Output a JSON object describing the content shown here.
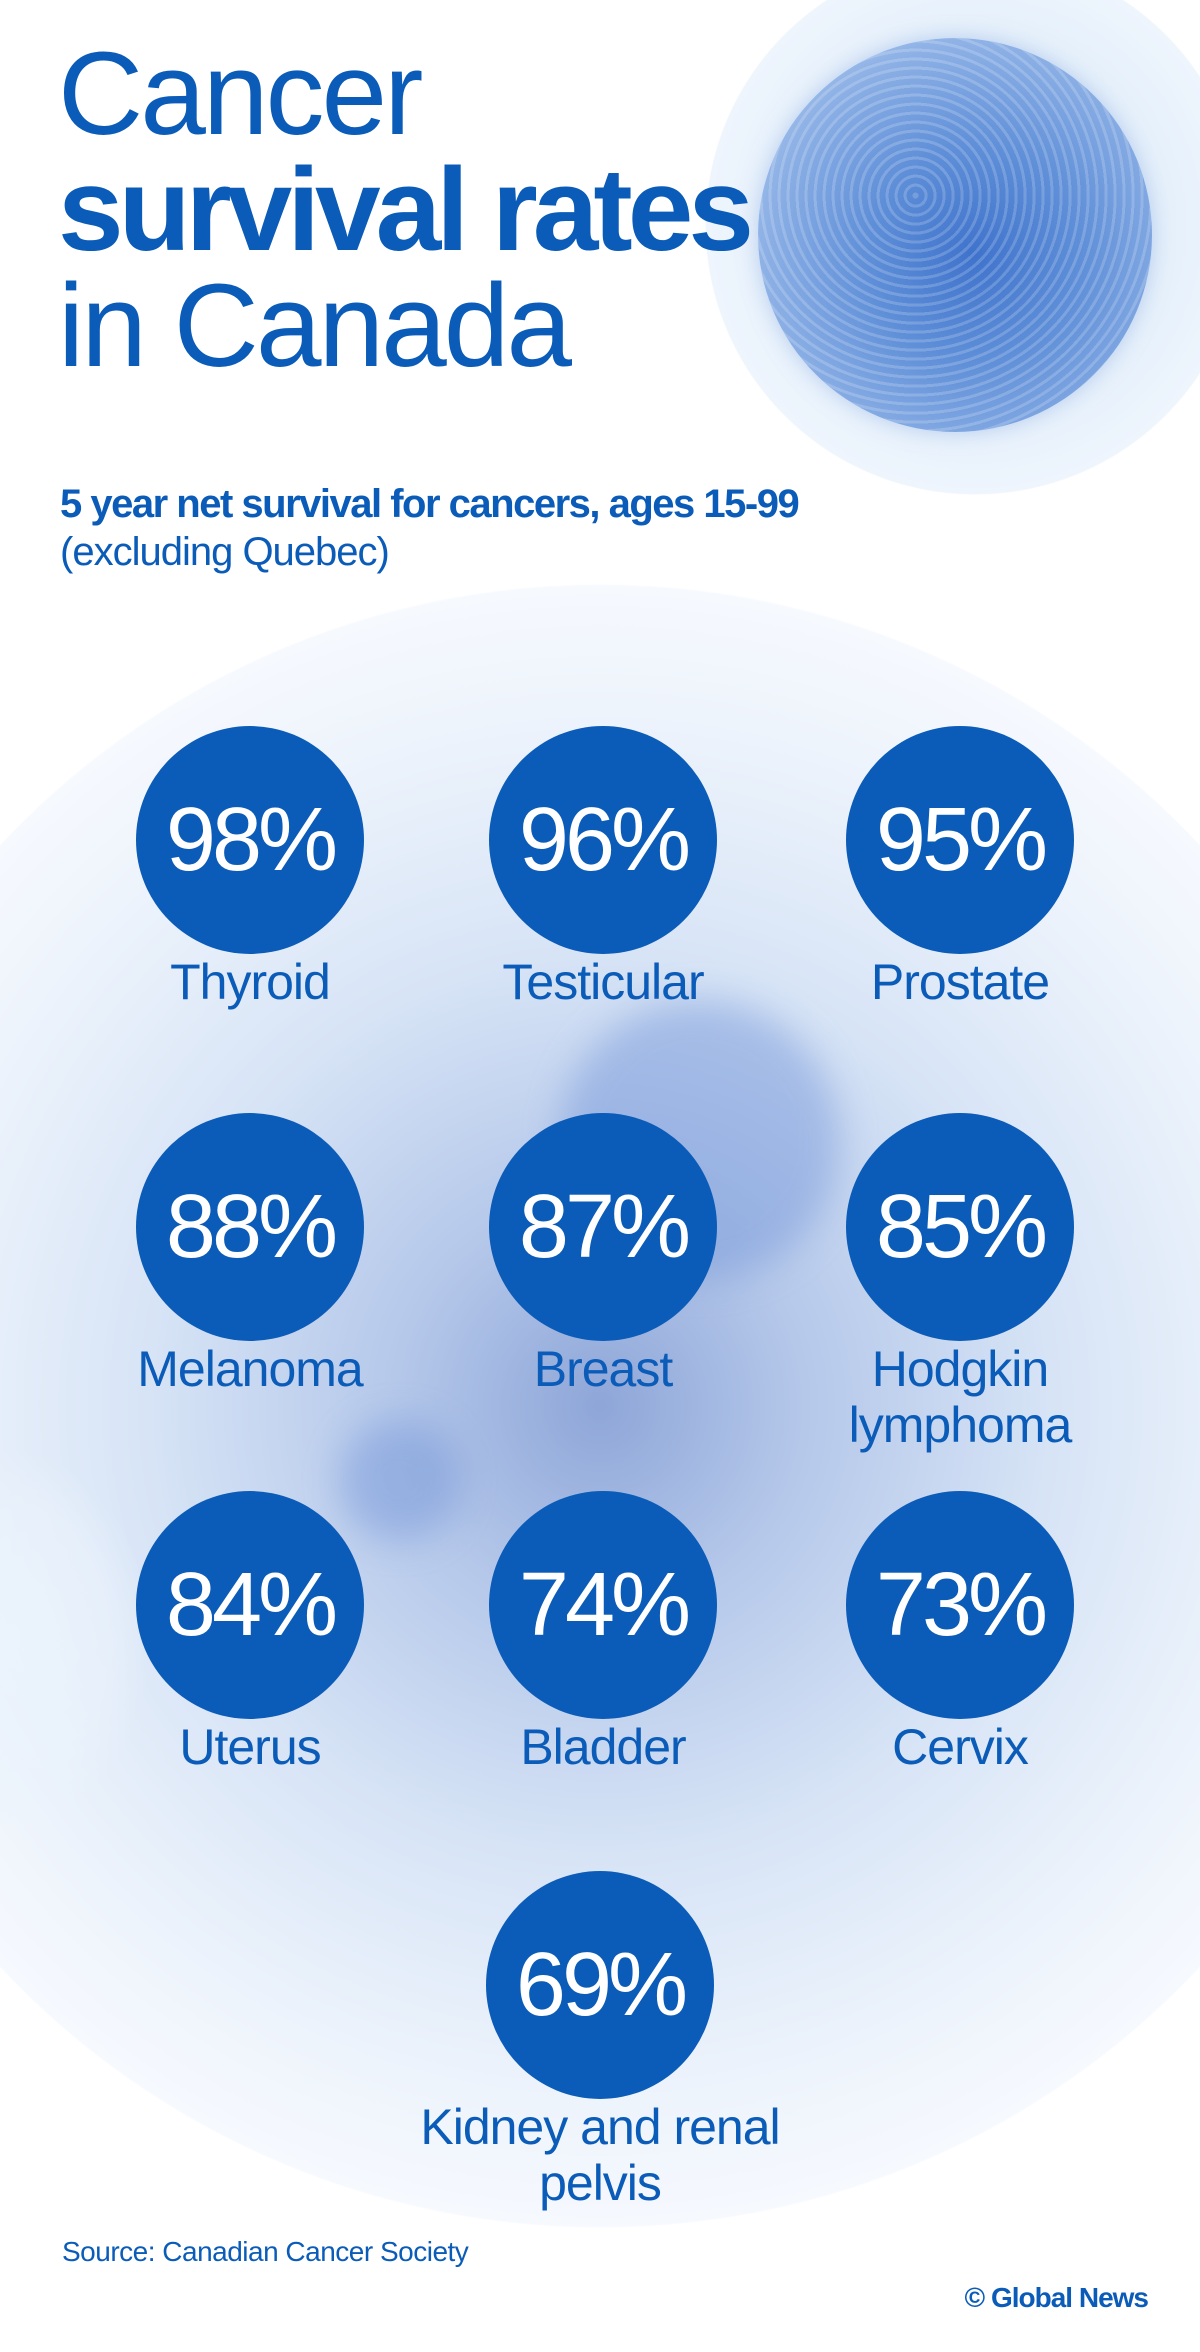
{
  "title": {
    "line1": "Cancer",
    "line2": "survival rates",
    "line3": "in Canada"
  },
  "subtitle": "5 year net survival for cancers, ages 15-99",
  "subnote": "(excluding Quebec)",
  "stats": [
    {
      "value": "98%",
      "label": "Thyroid"
    },
    {
      "value": "96%",
      "label": "Testicular"
    },
    {
      "value": "95%",
      "label": "Prostate"
    },
    {
      "value": "88%",
      "label": "Melanoma"
    },
    {
      "value": "87%",
      "label": "Breast"
    },
    {
      "value": "85%",
      "label": "Hodgkin lymphoma"
    },
    {
      "value": "84%",
      "label": "Uterus"
    },
    {
      "value": "74%",
      "label": "Bladder"
    },
    {
      "value": "73%",
      "label": "Cervix"
    },
    {
      "value": "69%",
      "label": "Kidney and renal pelvis"
    }
  ],
  "source": "Source: Canadian Cancer Society",
  "credit": "© Global News",
  "colors": {
    "accent": "#0b5cb8",
    "background": "#ffffff"
  },
  "chart_data": {
    "type": "table",
    "title": "Cancer survival rates in Canada",
    "subtitle": "5 year net survival for cancers, ages 15-99 (excluding Quebec)",
    "categories": [
      "Thyroid",
      "Testicular",
      "Prostate",
      "Melanoma",
      "Breast",
      "Hodgkin lymphoma",
      "Uterus",
      "Bladder",
      "Cervix",
      "Kidney and renal pelvis"
    ],
    "values": [
      98,
      96,
      95,
      88,
      87,
      85,
      84,
      74,
      73,
      69
    ],
    "unit": "%"
  }
}
